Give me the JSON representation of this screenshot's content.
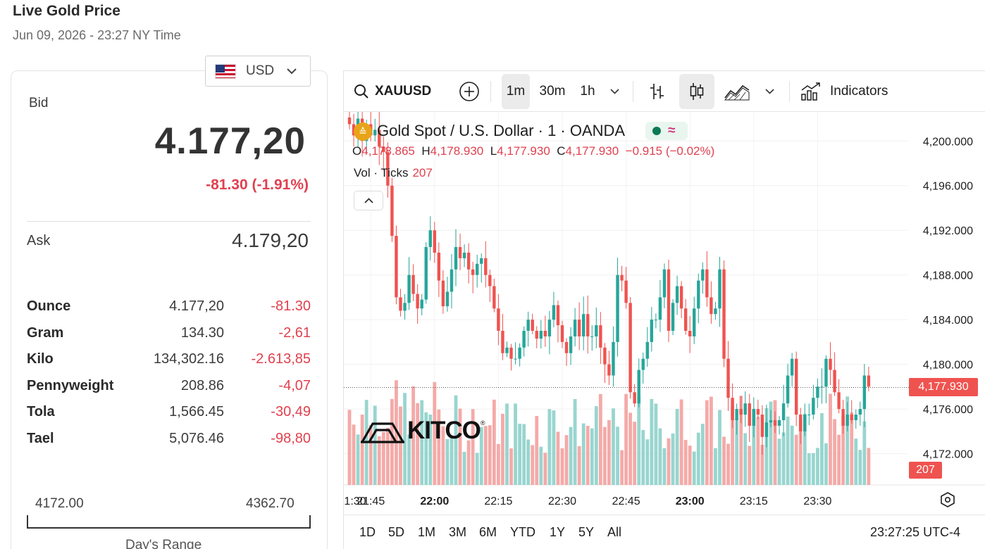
{
  "page": {
    "title": "Live Gold Price",
    "timestamp": "Jun 09, 2026 - 23:27 NY Time"
  },
  "currency": {
    "selected": "USD",
    "flag_icon": "us-flag-icon"
  },
  "quote": {
    "bid_label": "Bid",
    "bid_value": "4.177,20",
    "bid_change": "-81.30 (-1.91%)",
    "ask_label": "Ask",
    "ask_value": "4.179,20"
  },
  "units": [
    {
      "name": "Ounce",
      "price": "4.177,20",
      "change": "-81.30"
    },
    {
      "name": "Gram",
      "price": "134.30",
      "change": "-2,61"
    },
    {
      "name": "Kilo",
      "price": "134,302.16",
      "change": "-2.613,85"
    },
    {
      "name": "Pennyweight",
      "price": "208.86",
      "change": "-4,07"
    },
    {
      "name": "Tola",
      "price": "1,566.45",
      "change": "-30,49"
    },
    {
      "name": "Tael",
      "price": "5,076.46",
      "change": "-98,80"
    }
  ],
  "day_range": {
    "low": "4172.00",
    "high": "4362.70",
    "label": "Day's Range"
  },
  "toolbar": {
    "symbol": "XAUUSD",
    "intervals": [
      "1m",
      "30m",
      "1h"
    ],
    "active_interval": "1m",
    "indicators_label": "Indicators"
  },
  "legend": {
    "title": "Gold Spot / U.S. Dollar · 1 · OANDA",
    "open_key": "O",
    "open": "4,178.865",
    "high_key": "H",
    "high": "4,178.930",
    "low_key": "L",
    "low": "4,177.930",
    "close_key": "C",
    "close": "4,177.930",
    "change": "−0.915 (−0.02%)",
    "vol_label": "Vol · Ticks",
    "vol_value": "207"
  },
  "last_price_tag": "4,177.930",
  "volume_tag": "207",
  "watermark": "KITCO",
  "range_buttons": [
    "1D",
    "5D",
    "1M",
    "3M",
    "6M",
    "YTD",
    "1Y",
    "5Y",
    "All"
  ],
  "clock": "23:27:25 UTC-4",
  "colors": {
    "up": "#26a69a",
    "down": "#ef5350",
    "up_vol": "#99d5cf",
    "down_vol": "#f4aaa8",
    "accent_red": "#e0414f"
  },
  "chart_data": {
    "type": "candlestick",
    "y_axis_ticks": [
      "4,200.000",
      "4,196.000",
      "4,192.000",
      "4,188.000",
      "4,184.000",
      "4,180.000",
      "4,176.000",
      "4,172.000"
    ],
    "x_axis_ticks": [
      "1:30",
      "21:45",
      "22:00",
      "22:15",
      "22:30",
      "22:45",
      "23:00",
      "23:15",
      "23:30"
    ],
    "ylim": [
      4169.2,
      4202.6
    ],
    "interval": "1m",
    "last_price": 4177.93,
    "last_volume": 207,
    "grid": true,
    "closes": [
      4201.5,
      4200.5,
      4202,
      4200,
      4201.5,
      4200.5,
      4201,
      4199.5,
      4199,
      4196,
      4191.5,
      4186,
      4184.8,
      4185.5,
      4188,
      4186.3,
      4185,
      4185.8,
      4190.5,
      4192,
      4190,
      4187.5,
      4185.2,
      4186.5,
      4188.5,
      4190.5,
      4189.5,
      4190,
      4188.5,
      4188,
      4189,
      4189.5,
      4188,
      4187,
      4185,
      4183,
      4181,
      4181.5,
      4180.5,
      4180.5,
      4181.5,
      4183,
      4184,
      4183,
      4182.3,
      4183,
      4182.5,
      4184,
      4185.3,
      4183.5,
      4182,
      4181,
      4182.5,
      4184,
      4182.5,
      4184.5,
      4182.5,
      4182.5,
      4183.5,
      4181.5,
      4180,
      4179,
      4182,
      4188,
      4187.5,
      4185.5,
      4177.5,
      4176.5,
      4179.5,
      4180.5,
      4182,
      4184,
      4184,
      4186,
      4188.5,
      4183,
      4185.5,
      4187,
      4185,
      4183,
      4182.5,
      4185,
      4187.5,
      4188.5,
      4186,
      4184.5,
      4185,
      4188.5,
      4180.5,
      4177,
      4175,
      4176,
      4175.5,
      4176.5,
      4174.5,
      4176,
      4175.5,
      4173.5,
      4174.8,
      4175,
      4174.5,
      4175,
      4176.5,
      4179,
      4180.5,
      4175.5,
      4174,
      4175.5,
      4175.5,
      4177,
      4178,
      4178,
      4180.5,
      4179.5,
      4177.5,
      4176,
      4174.5,
      4175.5,
      4175,
      4175.5,
      4176,
      4179,
      4178
    ]
  }
}
